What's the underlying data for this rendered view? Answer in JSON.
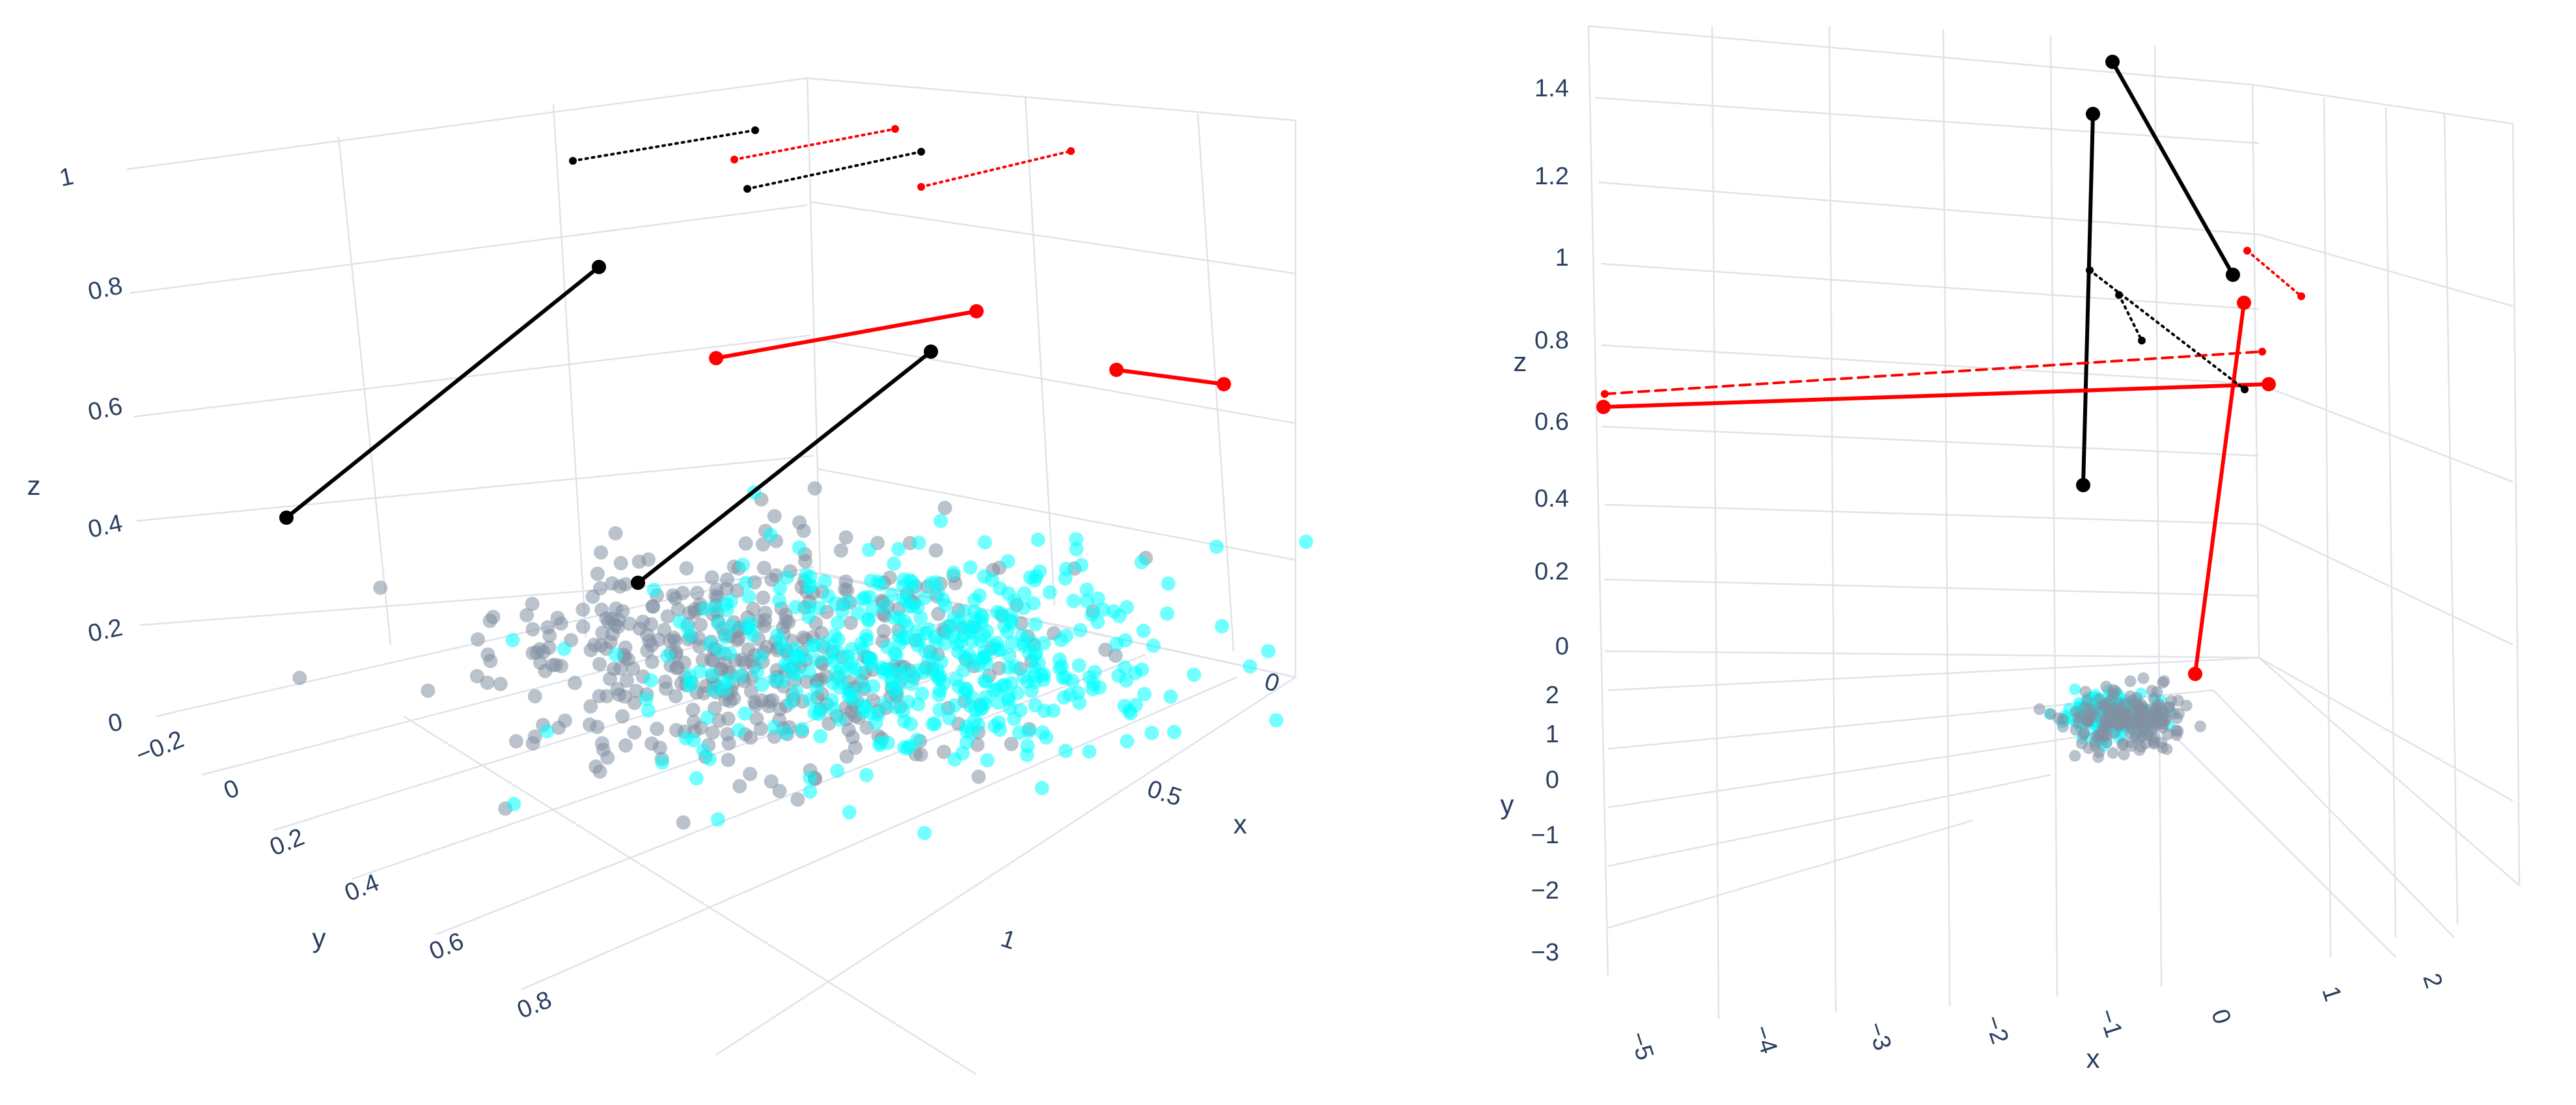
{
  "chart_data": [
    {
      "type": "scatter3d",
      "title": "",
      "xlabel": "x",
      "ylabel": "y",
      "zlabel": "z",
      "x_ticks": [
        "0",
        "0.5",
        "1"
      ],
      "y_ticks": [
        "−0.2",
        "0",
        "0.2",
        "0.4",
        "0.6",
        "0.8"
      ],
      "z_ticks": [
        "0",
        "0.2",
        "0.4",
        "0.6",
        "0.8",
        "1"
      ],
      "xlim": [
        -0.3,
        1.3
      ],
      "ylim": [
        -0.3,
        0.95
      ],
      "zlim": [
        0,
        1.05
      ],
      "grid": true,
      "point_clouds": [
        {
          "color": "#8290a3",
          "count": 450,
          "center": {
            "x": 0.55,
            "y": 0.25,
            "z": 0.05
          }
        },
        {
          "color": "#00ffff",
          "count": 450,
          "center": {
            "x": 0.35,
            "y": 0.5,
            "z": 0.05
          }
        }
      ],
      "line_segments": [
        {
          "color": "#000000",
          "style": "solid",
          "from": {
            "x": 0.75,
            "y": 0.3,
            "z": 0.85
          },
          "to": {
            "x": 0.95,
            "y": 0.0,
            "z": 0.45
          }
        },
        {
          "color": "#000000",
          "style": "solid",
          "from": {
            "x": 0.3,
            "y": 0.5,
            "z": 0.9
          },
          "to": {
            "x": 0.7,
            "y": 0.2,
            "z": 0.3
          }
        },
        {
          "color": "#ff0000",
          "style": "solid",
          "from": {
            "x": 0.1,
            "y": 0.5,
            "z": 0.88
          },
          "to": {
            "x": 0.5,
            "y": 0.2,
            "z": 0.9
          }
        },
        {
          "color": "#ff0000",
          "style": "solid",
          "from": {
            "x": -0.05,
            "y": 0.55,
            "z": 0.8
          },
          "to": {
            "x": 0.0,
            "y": 0.65,
            "z": 0.8
          }
        },
        {
          "color": "#000000",
          "style": "dotted",
          "from": {
            "x": 0.75,
            "y": 0.3,
            "z": 1.0
          },
          "to": {
            "x": 0.95,
            "y": 0.0,
            "z": 1.0
          }
        },
        {
          "color": "#ff0000",
          "style": "dotted",
          "from": {
            "x": 0.4,
            "y": 0.3,
            "z": 1.0
          },
          "to": {
            "x": 0.6,
            "y": 0.05,
            "z": 1.0
          }
        },
        {
          "color": "#000000",
          "style": "dotted",
          "from": {
            "x": 0.3,
            "y": 0.5,
            "z": 1.0
          },
          "to": {
            "x": 0.55,
            "y": 0.15,
            "z": 1.0
          }
        },
        {
          "color": "#ff0000",
          "style": "dotted",
          "from": {
            "x": 0.1,
            "y": 0.5,
            "z": 1.0
          },
          "to": {
            "x": 0.3,
            "y": 0.2,
            "z": 1.0
          }
        }
      ]
    },
    {
      "type": "scatter3d",
      "title": "",
      "xlabel": "x",
      "ylabel": "y",
      "zlabel": "z",
      "x_ticks": [
        "−5",
        "−4",
        "−3",
        "−2",
        "−1",
        "0",
        "1",
        "2"
      ],
      "y_ticks": [
        "−3",
        "−2",
        "−1",
        "0",
        "1",
        "2"
      ],
      "z_ticks": [
        "0",
        "0.2",
        "0.4",
        "0.6",
        "0.8",
        "1",
        "1.2",
        "1.4"
      ],
      "xlim": [
        -5.2,
        2.5
      ],
      "ylim": [
        -3.2,
        2.3
      ],
      "zlim": [
        0,
        1.5
      ],
      "grid": true,
      "point_clouds": [
        {
          "color": "#00ffff",
          "count": 200,
          "center": {
            "x": -0.9,
            "y": 0.3,
            "z": 0.0
          }
        },
        {
          "color": "#8290a3",
          "count": 200,
          "center": {
            "x": -0.6,
            "y": 0.0,
            "z": 0.0
          }
        }
      ],
      "line_segments": [
        {
          "color": "#000000",
          "style": "solid",
          "from": {
            "x": -0.6,
            "y": 0.5,
            "z": 1.35
          },
          "to": {
            "x": -0.6,
            "y": 0.5,
            "z": 0.45
          }
        },
        {
          "color": "#000000",
          "style": "solid",
          "from": {
            "x": -0.5,
            "y": 0.8,
            "z": 1.47
          },
          "to": {
            "x": 0.6,
            "y": 1.3,
            "z": 0.97
          }
        },
        {
          "color": "#ff0000",
          "style": "solid",
          "from": {
            "x": -4.9,
            "y": 1.0,
            "z": 0.64
          },
          "to": {
            "x": 1.0,
            "y": 1.4,
            "z": 0.7
          }
        },
        {
          "color": "#ff0000",
          "style": "solid",
          "from": {
            "x": 0.6,
            "y": 1.3,
            "z": 0.92
          },
          "to": {
            "x": 0.0,
            "y": 0.8,
            "z": 0.08
          }
        },
        {
          "color": "#ff0000",
          "style": "dashed",
          "from": {
            "x": -4.9,
            "y": 1.0,
            "z": 0.67
          },
          "to": {
            "x": 0.9,
            "y": 1.4,
            "z": 0.79
          }
        },
        {
          "color": "#000000",
          "style": "dotted",
          "from": {
            "x": -0.6,
            "y": 0.5,
            "z": 0.98
          },
          "to": {
            "x": 0.6,
            "y": 1.3,
            "z": 0.7
          }
        },
        {
          "color": "#000000",
          "style": "dotted",
          "from": {
            "x": -0.4,
            "y": 0.6,
            "z": 0.92
          },
          "to": {
            "x": 0.0,
            "y": 0.9,
            "z": 0.82
          }
        },
        {
          "color": "#ff0000",
          "style": "dotted",
          "from": {
            "x": 0.9,
            "y": 1.5,
            "z": 1.02
          },
          "to": {
            "x": 1.4,
            "y": 1.9,
            "z": 0.92
          }
        }
      ]
    }
  ]
}
